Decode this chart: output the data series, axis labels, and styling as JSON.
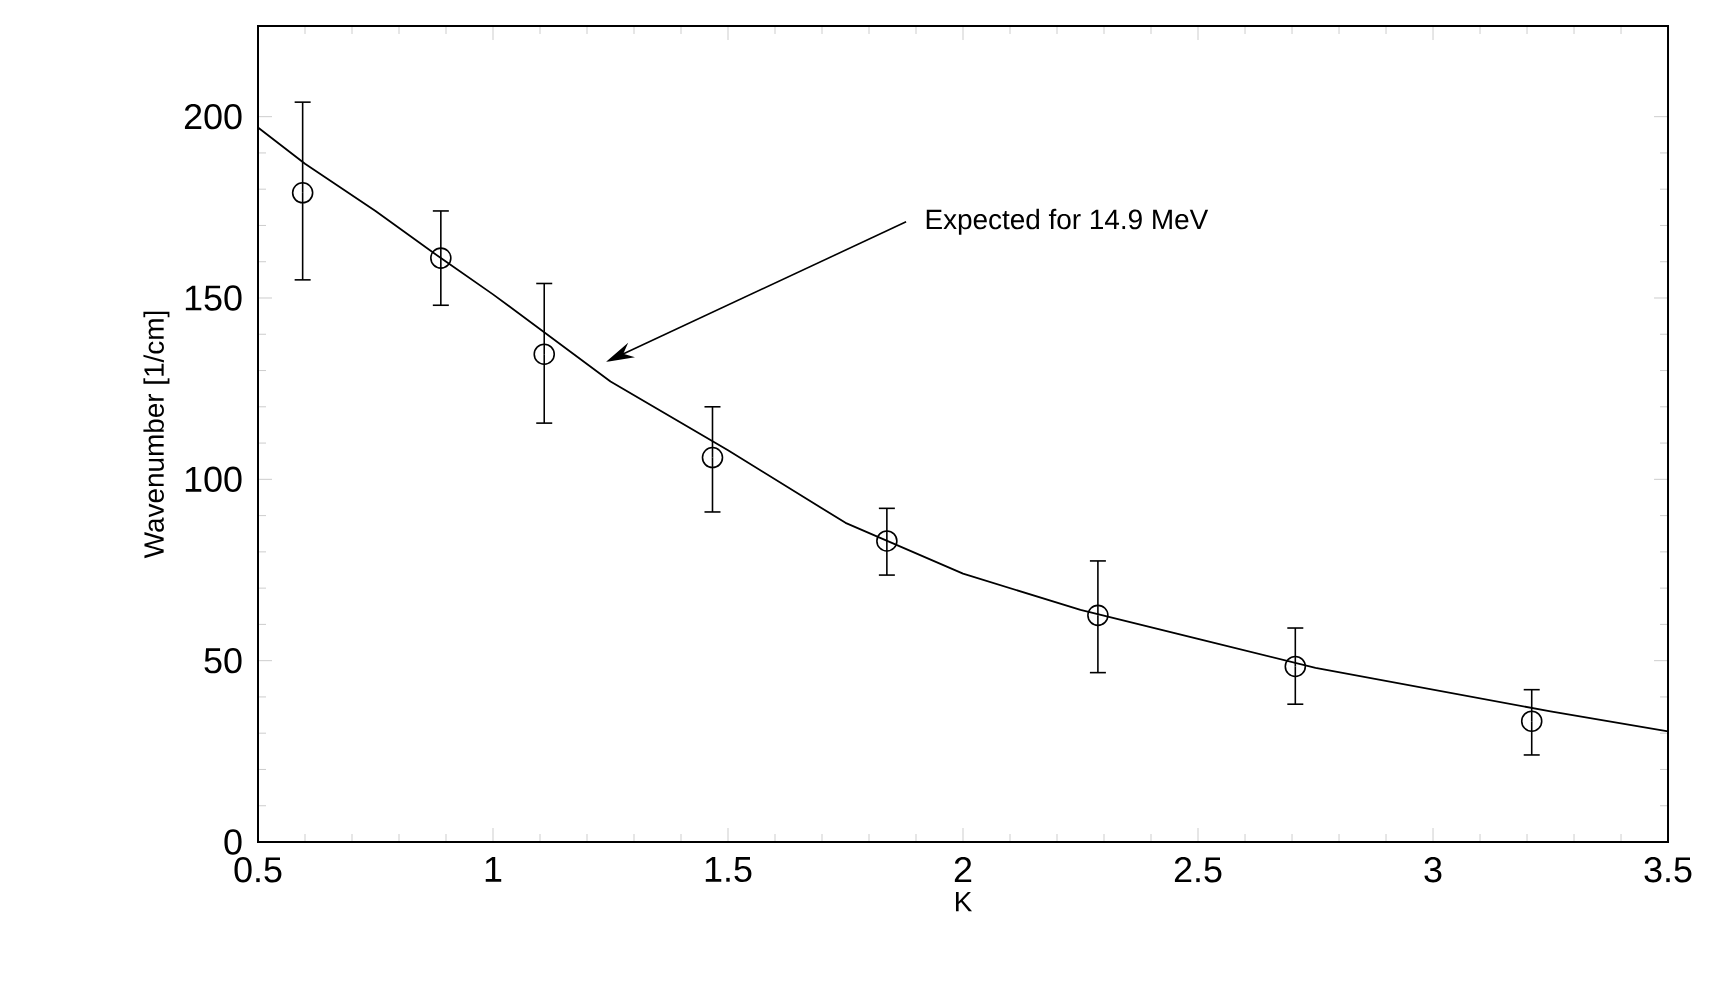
{
  "chart_data": {
    "type": "scatter",
    "xlabel": "K",
    "ylabel": "Wavenumber [1/cm]",
    "xlim": [
      0.5,
      3.5
    ],
    "ylim": [
      0,
      225
    ],
    "xticks": [
      0.5,
      1,
      1.5,
      2,
      2.5,
      3,
      3.5
    ],
    "yticks": [
      0,
      50,
      100,
      150,
      200
    ],
    "series": [
      {
        "color": "#000000",
        "marker": "circle",
        "x": [
          0.595,
          0.889,
          1.109,
          1.467,
          1.838,
          2.287,
          2.707,
          3.21
        ],
        "values": [
          179,
          161,
          134.5,
          106,
          83,
          62.5,
          48.4,
          33.3
        ],
        "errors": [
          [
            155,
            204
          ],
          [
            148,
            174
          ],
          [
            115.5,
            154
          ],
          [
            91,
            120
          ],
          [
            73.6,
            92
          ],
          [
            46.7,
            77.5
          ],
          [
            38,
            59
          ],
          [
            24,
            42
          ]
        ]
      },
      {
        "type": "line",
        "color": "#000000",
        "marker": "none",
        "line_style": "solid",
        "x": [
          0.5,
          0.6,
          0.75,
          0.889,
          1.0,
          1.25,
          1.5,
          1.75,
          2.0,
          2.25,
          2.5,
          2.75,
          3.0,
          3.25,
          3.5
        ],
        "values": [
          197,
          187,
          174,
          161,
          151,
          127,
          108,
          88,
          74,
          64,
          56,
          48,
          42,
          36,
          30.5
        ]
      }
    ],
    "annotations": [
      "Expected for 14.9 MeV"
    ],
    "grid": false
  }
}
